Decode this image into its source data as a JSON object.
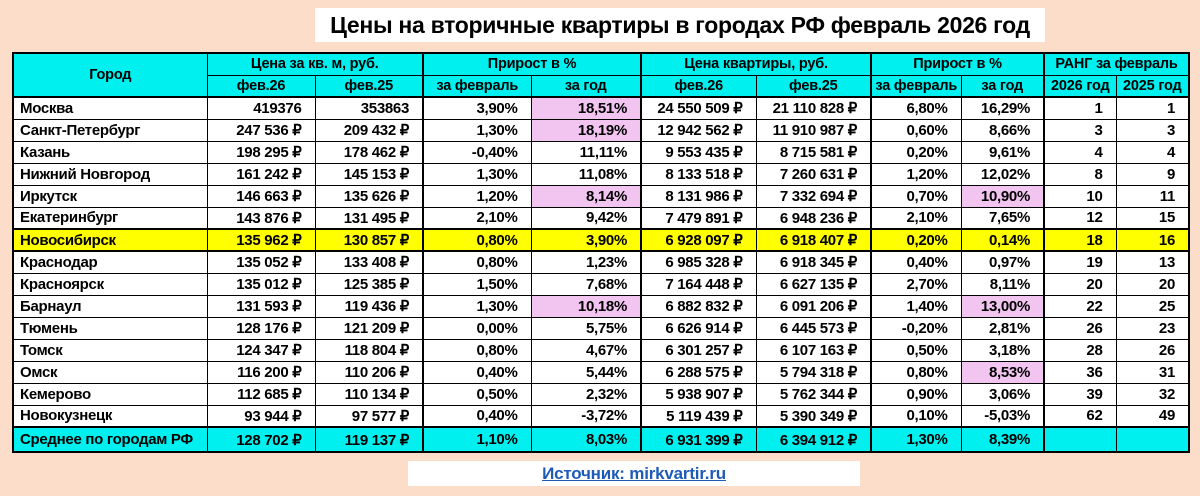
{
  "title": "Цены на вторичные квартиры в городах РФ февраль 2026 год",
  "source": {
    "label": "Источник: mirkvartir.ru"
  },
  "colors": {
    "page_bg": "#fbddca",
    "header_bg": "#00f0f0",
    "highlight_row_bg": "#ffff00",
    "highlight_cell_bg": "#f2c4f0",
    "link_color": "#1e5bb8"
  },
  "chart_data": {
    "type": "table",
    "title": "Цены на вторичные квартиры в городах РФ февраль 2026 год",
    "header": {
      "city": "Город",
      "groups": [
        {
          "label": "Цена за кв. м, руб."
        },
        {
          "label": "Прирост в %"
        },
        {
          "label": "Цена квартиры, руб."
        },
        {
          "label": "Прирост в %"
        },
        {
          "label": "РАНГ за февраль"
        }
      ],
      "sub": [
        "фев.26",
        "фев.25",
        "за февраль",
        "за год",
        "фев.26",
        "фев.25",
        "за февраль",
        "за год",
        "2026 год",
        "2025 год"
      ]
    },
    "rows": [
      {
        "city": "Москва",
        "values": [
          "419376",
          "353863",
          "3,90%",
          "18,51%",
          "24 550 509 ₽",
          "21 110 828 ₽",
          "6,80%",
          "16,29%",
          "1",
          "1"
        ],
        "pink": [
          3
        ]
      },
      {
        "city": "Санкт-Петербург",
        "values": [
          "247 536 ₽",
          "209 432 ₽",
          "1,30%",
          "18,19%",
          "12 942 562 ₽",
          "11 910 987 ₽",
          "0,60%",
          "8,66%",
          "3",
          "3"
        ],
        "pink": [
          3
        ]
      },
      {
        "city": "Казань",
        "values": [
          "198 295 ₽",
          "178 462 ₽",
          "-0,40%",
          "11,11%",
          "9 553 435 ₽",
          "8 715 581 ₽",
          "0,20%",
          "9,61%",
          "4",
          "4"
        ],
        "pink": []
      },
      {
        "city": "Нижний Новгород",
        "values": [
          "161 242 ₽",
          "145 153 ₽",
          "1,30%",
          "11,08%",
          "8 133 518 ₽",
          "7 260 631 ₽",
          "1,20%",
          "12,02%",
          "8",
          "9"
        ],
        "pink": []
      },
      {
        "city": "Иркутск",
        "values": [
          "146 663 ₽",
          "135 626 ₽",
          "1,20%",
          "8,14%",
          "8 131 986 ₽",
          "7 332 694 ₽",
          "0,70%",
          "10,90%",
          "10",
          "11"
        ],
        "pink": [
          3,
          7
        ]
      },
      {
        "city": "Екатеринбург",
        "values": [
          "143 876 ₽",
          "131 495 ₽",
          "2,10%",
          "9,42%",
          "7 479 891 ₽",
          "6 948 236 ₽",
          "2,10%",
          "7,65%",
          "12",
          "15"
        ],
        "pink": []
      },
      {
        "city": "Новосибирск",
        "values": [
          "135 962 ₽",
          "130 857 ₽",
          "0,80%",
          "3,90%",
          "6 928 097 ₽",
          "6 918 407 ₽",
          "0,20%",
          "0,14%",
          "18",
          "16"
        ],
        "pink": [],
        "yellow": true
      },
      {
        "city": "Краснодар",
        "values": [
          "135 052 ₽",
          "133 408 ₽",
          "0,80%",
          "1,23%",
          "6 985 328 ₽",
          "6 918 345 ₽",
          "0,40%",
          "0,97%",
          "19",
          "13"
        ],
        "pink": []
      },
      {
        "city": "Красноярск",
        "values": [
          "135 012 ₽",
          "125 385 ₽",
          "1,50%",
          "7,68%",
          "7 164 448 ₽",
          "6 627 135 ₽",
          "2,70%",
          "8,11%",
          "20",
          "20"
        ],
        "pink": []
      },
      {
        "city": "Барнаул",
        "values": [
          "131 593 ₽",
          "119 436 ₽",
          "1,30%",
          "10,18%",
          "6 882 832 ₽",
          "6 091 206 ₽",
          "1,40%",
          "13,00%",
          "22",
          "25"
        ],
        "pink": [
          3,
          7
        ]
      },
      {
        "city": "Тюмень",
        "values": [
          "128 176 ₽",
          "121 209 ₽",
          "0,00%",
          "5,75%",
          "6 626 914 ₽",
          "6 445 573 ₽",
          "-0,20%",
          "2,81%",
          "26",
          "23"
        ],
        "pink": []
      },
      {
        "city": "Томск",
        "values": [
          "124 347 ₽",
          "118 804 ₽",
          "0,80%",
          "4,67%",
          "6 301 257 ₽",
          "6 107 163 ₽",
          "0,50%",
          "3,18%",
          "28",
          "26"
        ],
        "pink": []
      },
      {
        "city": "Омск",
        "values": [
          "116 200 ₽",
          "110 206 ₽",
          "0,40%",
          "5,44%",
          "6 288 575 ₽",
          "5 794 318 ₽",
          "0,80%",
          "8,53%",
          "36",
          "31"
        ],
        "pink": [
          7
        ]
      },
      {
        "city": "Кемерово",
        "values": [
          "112 685 ₽",
          "110 134 ₽",
          "0,50%",
          "2,32%",
          "5 938 907 ₽",
          "5 762 344 ₽",
          "0,90%",
          "3,06%",
          "39",
          "32"
        ],
        "pink": []
      },
      {
        "city": "Новокузнецк",
        "values": [
          "93 944 ₽",
          "97 577 ₽",
          "0,40%",
          "-3,72%",
          "5 119 439 ₽",
          "5 390 349 ₽",
          "0,10%",
          "-5,03%",
          "62",
          "49"
        ],
        "pink": []
      },
      {
        "city": "Среднее по городам РФ",
        "values": [
          "128 702 ₽",
          "119 137 ₽",
          "1,10%",
          "8,03%",
          "6 931 399 ₽",
          "6 394 912 ₽",
          "1,30%",
          "8,39%",
          "",
          ""
        ],
        "pink": [],
        "average": true
      }
    ]
  }
}
